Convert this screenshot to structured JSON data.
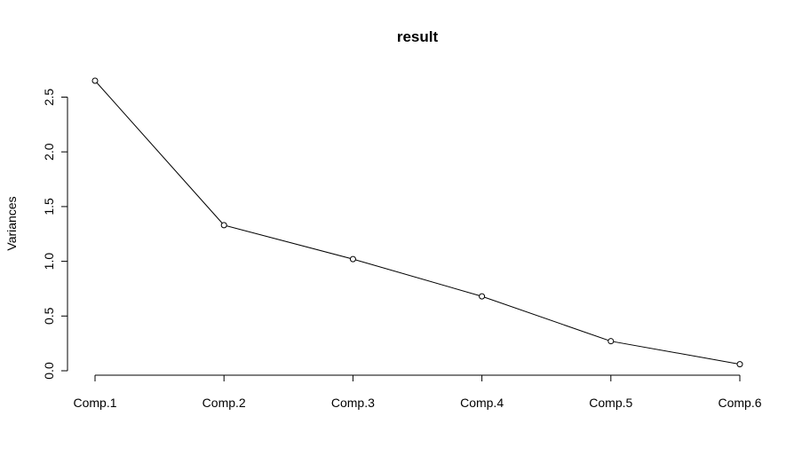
{
  "chart_data": {
    "type": "line",
    "title": "result",
    "xlabel": "",
    "ylabel": "Variances",
    "categories": [
      "Comp.1",
      "Comp.2",
      "Comp.3",
      "Comp.4",
      "Comp.5",
      "Comp.6"
    ],
    "values": [
      2.65,
      1.33,
      1.02,
      0.68,
      0.27,
      0.06
    ],
    "yticks": [
      0.0,
      0.5,
      1.0,
      1.5,
      2.0,
      2.5
    ],
    "ytick_labels": [
      "0.0",
      "0.5",
      "1.0",
      "1.5",
      "2.0",
      "2.5"
    ],
    "ylim": [
      0.0,
      2.65
    ],
    "markers": "open-circle",
    "grid": false,
    "line_color": "#000000"
  }
}
